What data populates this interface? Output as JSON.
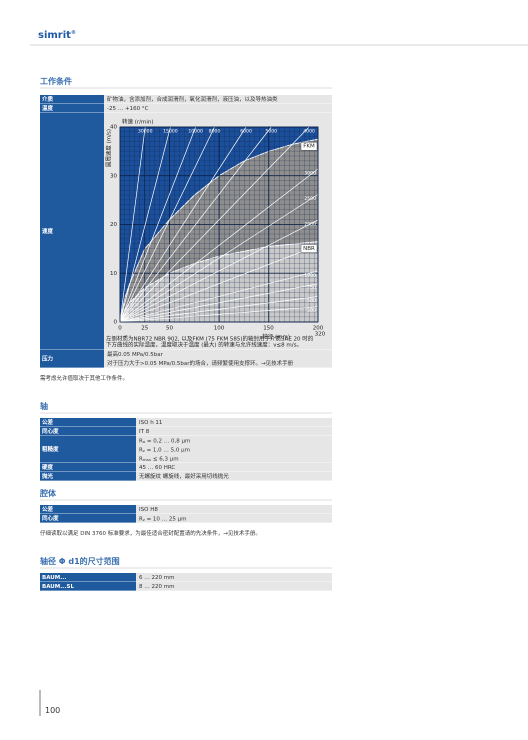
{
  "header": {
    "logo": "simrit",
    "logo_mark": "®"
  },
  "sections": [
    {
      "title": "工作条件",
      "rows": [
        {
          "label": "介质",
          "lines": [
            "矿物油，含添加剂，合成润滑剂，氧化润滑剂，液压油，以及导热油类"
          ]
        },
        {
          "label": "温度",
          "lines": [
            "-25 … +160 °C"
          ]
        },
        {
          "label": "速度"
        },
        {
          "label": "压力",
          "lines": [
            "最高0.05 MPa/0.5bar",
            "对于压力大于>0.05 MPa/0.5bar的场合，请频繁使用支撑环。→见技术手册"
          ]
        }
      ],
      "note": "需考虑允许值取决于其他工作条件。"
    },
    {
      "title": "轴",
      "rows": [
        {
          "label": "公差",
          "lines": [
            "ISO h 11"
          ]
        },
        {
          "label": "同心度",
          "lines": [
            "IT 8"
          ]
        },
        {
          "label": "粗糙度",
          "lines": [
            {
              "symbol": "R",
              "sub": "a",
              "text": " = 0,2 … 0,8 µm"
            },
            {
              "symbol": "R",
              "sub": "z",
              "text": " = 1,0 … 5,0 µm"
            },
            {
              "symbol": "R",
              "sub": "max",
              "text": " ≤ 6,3 µm"
            }
          ]
        },
        {
          "label": "硬度",
          "lines": [
            "45 … 60 HRC"
          ]
        },
        {
          "label": "抛光",
          "lines": [
            "无螺旋纹 螺旋线，最好采用切线抛光"
          ]
        }
      ]
    },
    {
      "title": "腔体",
      "rows": [
        {
          "label": "公差",
          "lines": [
            "ISO H8"
          ]
        },
        {
          "label": "同心度",
          "lines": [
            {
              "symbol": "R",
              "sub": "z",
              "text": " = 10 … 25 µm"
            }
          ]
        }
      ],
      "note": "仔细读取以满足 DIN 3760 标准要求，为最佳适合密封配置请的先决条件，→见技术手册。"
    },
    {
      "title": "轴径 Φ d1的尺寸范围",
      "rows": [
        {
          "label": "BAUM...",
          "lines": [
            "6 … 220 mm"
          ]
        },
        {
          "label": "BAUM...SL",
          "lines": [
            "8 … 220 mm"
          ]
        }
      ]
    }
  ],
  "chart_data": {
    "type": "line",
    "y_label": "圆周速度 (m/s)",
    "x_label": "轴径 (mm)",
    "x_extra_label": "320",
    "xlim": [
      0,
      200
    ],
    "xticks": [
      0,
      25,
      50,
      100,
      150,
      200
    ],
    "ylim": [
      0,
      40
    ],
    "yticks": [
      0,
      10,
      20,
      30,
      40
    ],
    "background": "#1c4f9a",
    "series": [
      {
        "name": "FKM",
        "color": "#8e8e8e",
        "x": [
          0,
          5,
          10,
          25,
          50,
          75,
          100,
          125,
          150,
          175,
          200
        ],
        "values": [
          0,
          5,
          8,
          15,
          21,
          26,
          30,
          33,
          35,
          36.5,
          37.5
        ]
      },
      {
        "name": "NBR",
        "color": "#c9c9c9",
        "x": [
          0,
          5,
          10,
          25,
          50,
          75,
          100,
          125,
          150,
          175,
          200
        ],
        "values": [
          0,
          2.5,
          4,
          7,
          10,
          12,
          13.5,
          14.5,
          15.5,
          16,
          16.5
        ]
      }
    ],
    "rpm": {
      "name": "转速 (r/min)",
      "values": [
        30000,
        15000,
        10000,
        8000,
        6000,
        5000,
        4000,
        3000,
        2500,
        2000,
        1500,
        1000,
        750,
        500,
        300
      ]
    },
    "caption": [
      "左侧材质为NBR72 NBR 902, 以及FKM (75 FKM 585)的轴封用于介质SAE 20 时的",
      "下方曲线的实际温度，温度取决于温度 (最大) 的转速与允许线速度：v≤8 m/s。"
    ]
  },
  "page_number": "100"
}
